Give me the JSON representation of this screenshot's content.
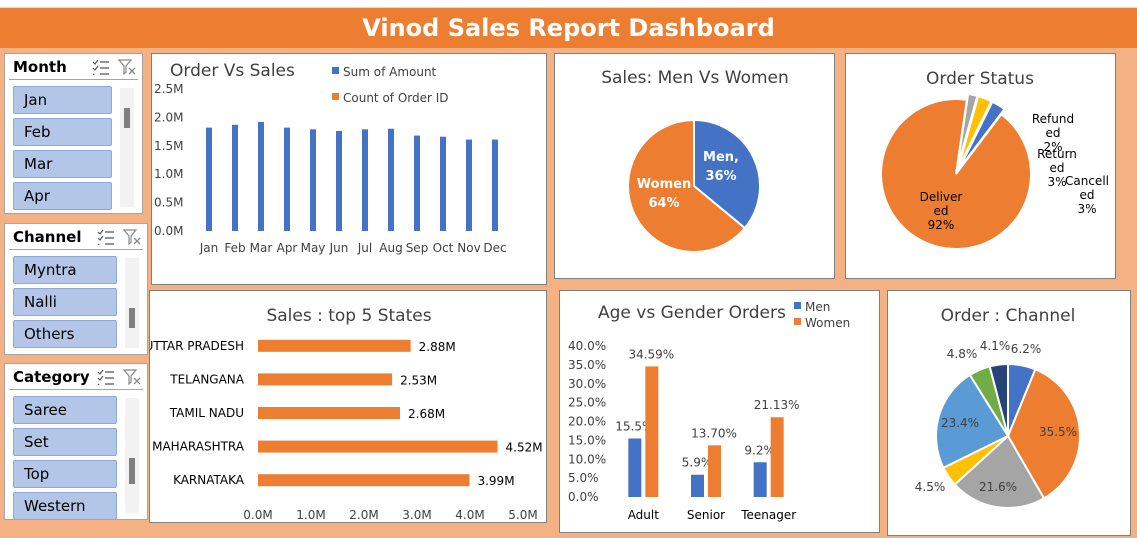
{
  "dashboard": {
    "title": "Vinod Sales Report Dashboard"
  },
  "colors": {
    "blue": "#4472c4",
    "orange": "#ed7d31",
    "gray": "#a5a5a5",
    "yellow": "#ffc000",
    "lightblue": "#5b9bd5",
    "green": "#70ad47",
    "navy": "#264478"
  },
  "slicers": {
    "month": {
      "title": "Month",
      "items": [
        "Jan",
        "Feb",
        "Mar",
        "Apr"
      ]
    },
    "channel": {
      "title": "Channel",
      "items": [
        "Myntra",
        "Nalli",
        "Others"
      ]
    },
    "category": {
      "title": "Category",
      "items": [
        "Saree",
        "Set",
        "Top",
        "Western"
      ]
    }
  },
  "chart_data": [
    {
      "id": "order_vs_sales",
      "type": "bar",
      "title": "Order Vs Sales",
      "categories": [
        "Jan",
        "Feb",
        "Mar",
        "Apr",
        "May",
        "Jun",
        "Jul",
        "Aug",
        "Sep",
        "Oct",
        "Nov",
        "Dec"
      ],
      "series": [
        {
          "name": "Sum of Amount",
          "values": [
            1.82,
            1.87,
            1.92,
            1.82,
            1.79,
            1.76,
            1.79,
            1.8,
            1.68,
            1.66,
            1.61,
            1.61
          ]
        },
        {
          "name": "Count of Order ID",
          "values": [
            0,
            0,
            0,
            0,
            0,
            0,
            0,
            0,
            0,
            0,
            0,
            0
          ]
        }
      ],
      "y_ticks": [
        "2.5M",
        "2.0M",
        "1.5M",
        "1.0M",
        "0.5M",
        "0.0M"
      ],
      "ylim": [
        0,
        2.5
      ],
      "legend": "top-right"
    },
    {
      "id": "men_vs_women",
      "type": "pie",
      "title": "Sales: Men Vs Women",
      "slices": [
        {
          "name": "Men",
          "value": 36,
          "label": "Men,",
          "pct": "36%"
        },
        {
          "name": "Women",
          "value": 64,
          "label": "Women",
          "pct": "64%"
        }
      ]
    },
    {
      "id": "order_status",
      "type": "pie",
      "title": "Order Status",
      "slices": [
        {
          "name": "Delivered",
          "value": 92,
          "label": "Deliver\ned\n92%"
        },
        {
          "name": "Refunded",
          "value": 2,
          "label": "Refund\ned\n2%"
        },
        {
          "name": "Returned",
          "value": 3,
          "label": "Return\ned\n3%"
        },
        {
          "name": "Cancelled",
          "value": 3,
          "label": "Cancell\ned\n3%"
        }
      ]
    },
    {
      "id": "top_states",
      "type": "bar",
      "orientation": "horizontal",
      "title": "Sales : top 5 States",
      "categories": [
        "UTTAR PRADESH",
        "TELANGANA",
        "TAMIL NADU",
        "MAHARASHTRA",
        "KARNATAKA"
      ],
      "values": [
        2.88,
        2.53,
        2.68,
        4.52,
        3.99
      ],
      "value_labels": [
        "2.88M",
        "2.53M",
        "2.68M",
        "4.52M",
        "3.99M"
      ],
      "x_ticks": [
        "0.0M",
        "1.0M",
        "2.0M",
        "3.0M",
        "4.0M",
        "5.0M"
      ],
      "xlim": [
        0,
        5
      ]
    },
    {
      "id": "age_gender",
      "type": "bar",
      "title": "Age vs Gender Orders",
      "categories": [
        "Adult",
        "Senior",
        "Teenager"
      ],
      "series": [
        {
          "name": "Men",
          "values": [
            15.5,
            5.9,
            9.2
          ],
          "labels": [
            "15.5%",
            "5.9%",
            "9.2%"
          ]
        },
        {
          "name": "Women",
          "values": [
            34.59,
            13.7,
            21.13
          ],
          "labels": [
            "34.59%",
            "13.70%",
            "21.13%"
          ]
        }
      ],
      "y_ticks": [
        "40.0%",
        "35.0%",
        "30.0%",
        "25.0%",
        "20.0%",
        "15.0%",
        "10.0%",
        "5.0%",
        "0.0%"
      ],
      "ylim": [
        0,
        40
      ],
      "legend": "top-right"
    },
    {
      "id": "order_channel",
      "type": "pie",
      "title": "Order : Channel",
      "slices": [
        {
          "name": "s1",
          "value": 6.2,
          "label": "6.2%"
        },
        {
          "name": "s2",
          "value": 35.5,
          "label": "35.5%"
        },
        {
          "name": "s3",
          "value": 21.6,
          "label": "21.6%"
        },
        {
          "name": "s4",
          "value": 4.5,
          "label": "4.5%"
        },
        {
          "name": "s5",
          "value": 23.4,
          "label": "23.4%"
        },
        {
          "name": "s6",
          "value": 4.8,
          "label": "4.8%"
        },
        {
          "name": "s7",
          "value": 4.1,
          "label": "4.1%"
        }
      ]
    }
  ]
}
